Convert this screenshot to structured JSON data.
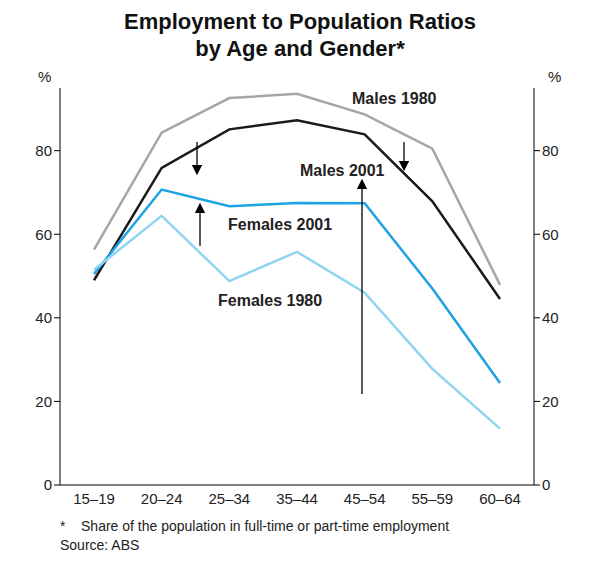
{
  "chart_data": {
    "type": "line",
    "title": "Employment to Population Ratios\nby Age and Gender*",
    "y_label": "%",
    "notes": [
      "*    Share of the population in full-time or part-time employment",
      "Source: ABS"
    ],
    "categories": [
      "15–19",
      "20–24",
      "25–34",
      "35–44",
      "45–54",
      "55–59",
      "60–64"
    ],
    "series": [
      {
        "name": "Males 1980",
        "color": "#a3a6aa",
        "values": [
          56.3,
          84.3,
          92.6,
          93.6,
          88.7,
          80.5,
          47.9
        ]
      },
      {
        "name": "Males 2001",
        "color": "#1a1a1a",
        "values": [
          49,
          75.9,
          85.1,
          87.3,
          83.9,
          67.9,
          44.5
        ]
      },
      {
        "name": "Females 2001",
        "color": "#1ea3e2",
        "values": [
          50.5,
          70.7,
          66.7,
          67.5,
          67.4,
          47,
          24.4
        ]
      },
      {
        "name": "Females 1980",
        "color": "#90d4f2",
        "values": [
          51.5,
          64.4,
          48.8,
          55.8,
          46,
          27.8,
          13.5
        ]
      }
    ],
    "ylim": [
      0,
      95
    ],
    "yticks": [
      0,
      20,
      40,
      60,
      80
    ],
    "grid": false,
    "legend": "none"
  }
}
